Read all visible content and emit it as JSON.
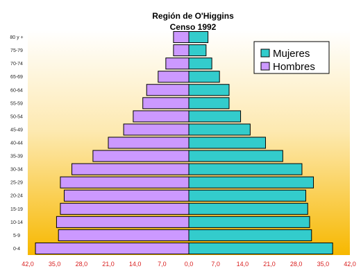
{
  "chart_data": {
    "type": "bar",
    "orientation": "horizontal-population-pyramid",
    "title": "Región de O'Higgins",
    "subtitle": "Censo 1992",
    "categories": [
      "0-4",
      "5-9",
      "10-14",
      "15-19",
      "20-24",
      "25-29",
      "30-34",
      "35-39",
      "40-44",
      "45-49",
      "50-54",
      "55-59",
      "60-64",
      "65-69",
      "70-74",
      "75-79",
      "80 y +"
    ],
    "series": [
      {
        "name": "Mujeres",
        "color": "#33cccc",
        "side": "right",
        "values": [
          37.5,
          32.0,
          31.5,
          31.0,
          30.5,
          32.5,
          29.5,
          24.5,
          20.0,
          16.0,
          13.5,
          10.5,
          10.5,
          8.0,
          6.0,
          4.5,
          5.0
        ]
      },
      {
        "name": "Hombres",
        "color": "#cc99ff",
        "side": "left",
        "values": [
          40.0,
          34.0,
          34.5,
          33.5,
          32.5,
          33.5,
          30.5,
          25.0,
          21.0,
          17.0,
          14.5,
          12.0,
          11.0,
          8.0,
          6.0,
          4.0,
          4.0
        ]
      }
    ],
    "xlim": [
      -42,
      42
    ],
    "xticks": [
      "42,0",
      "35,0",
      "28,0",
      "21,0",
      "14,0",
      "7,0",
      "0,0",
      "7,0",
      "14,0",
      "21,0",
      "28,0",
      "35,0",
      "42,0"
    ],
    "legend_position": "top-right",
    "grid": false,
    "background_gradient": [
      "#ffffff",
      "#fde9b0",
      "#f7b800"
    ]
  }
}
